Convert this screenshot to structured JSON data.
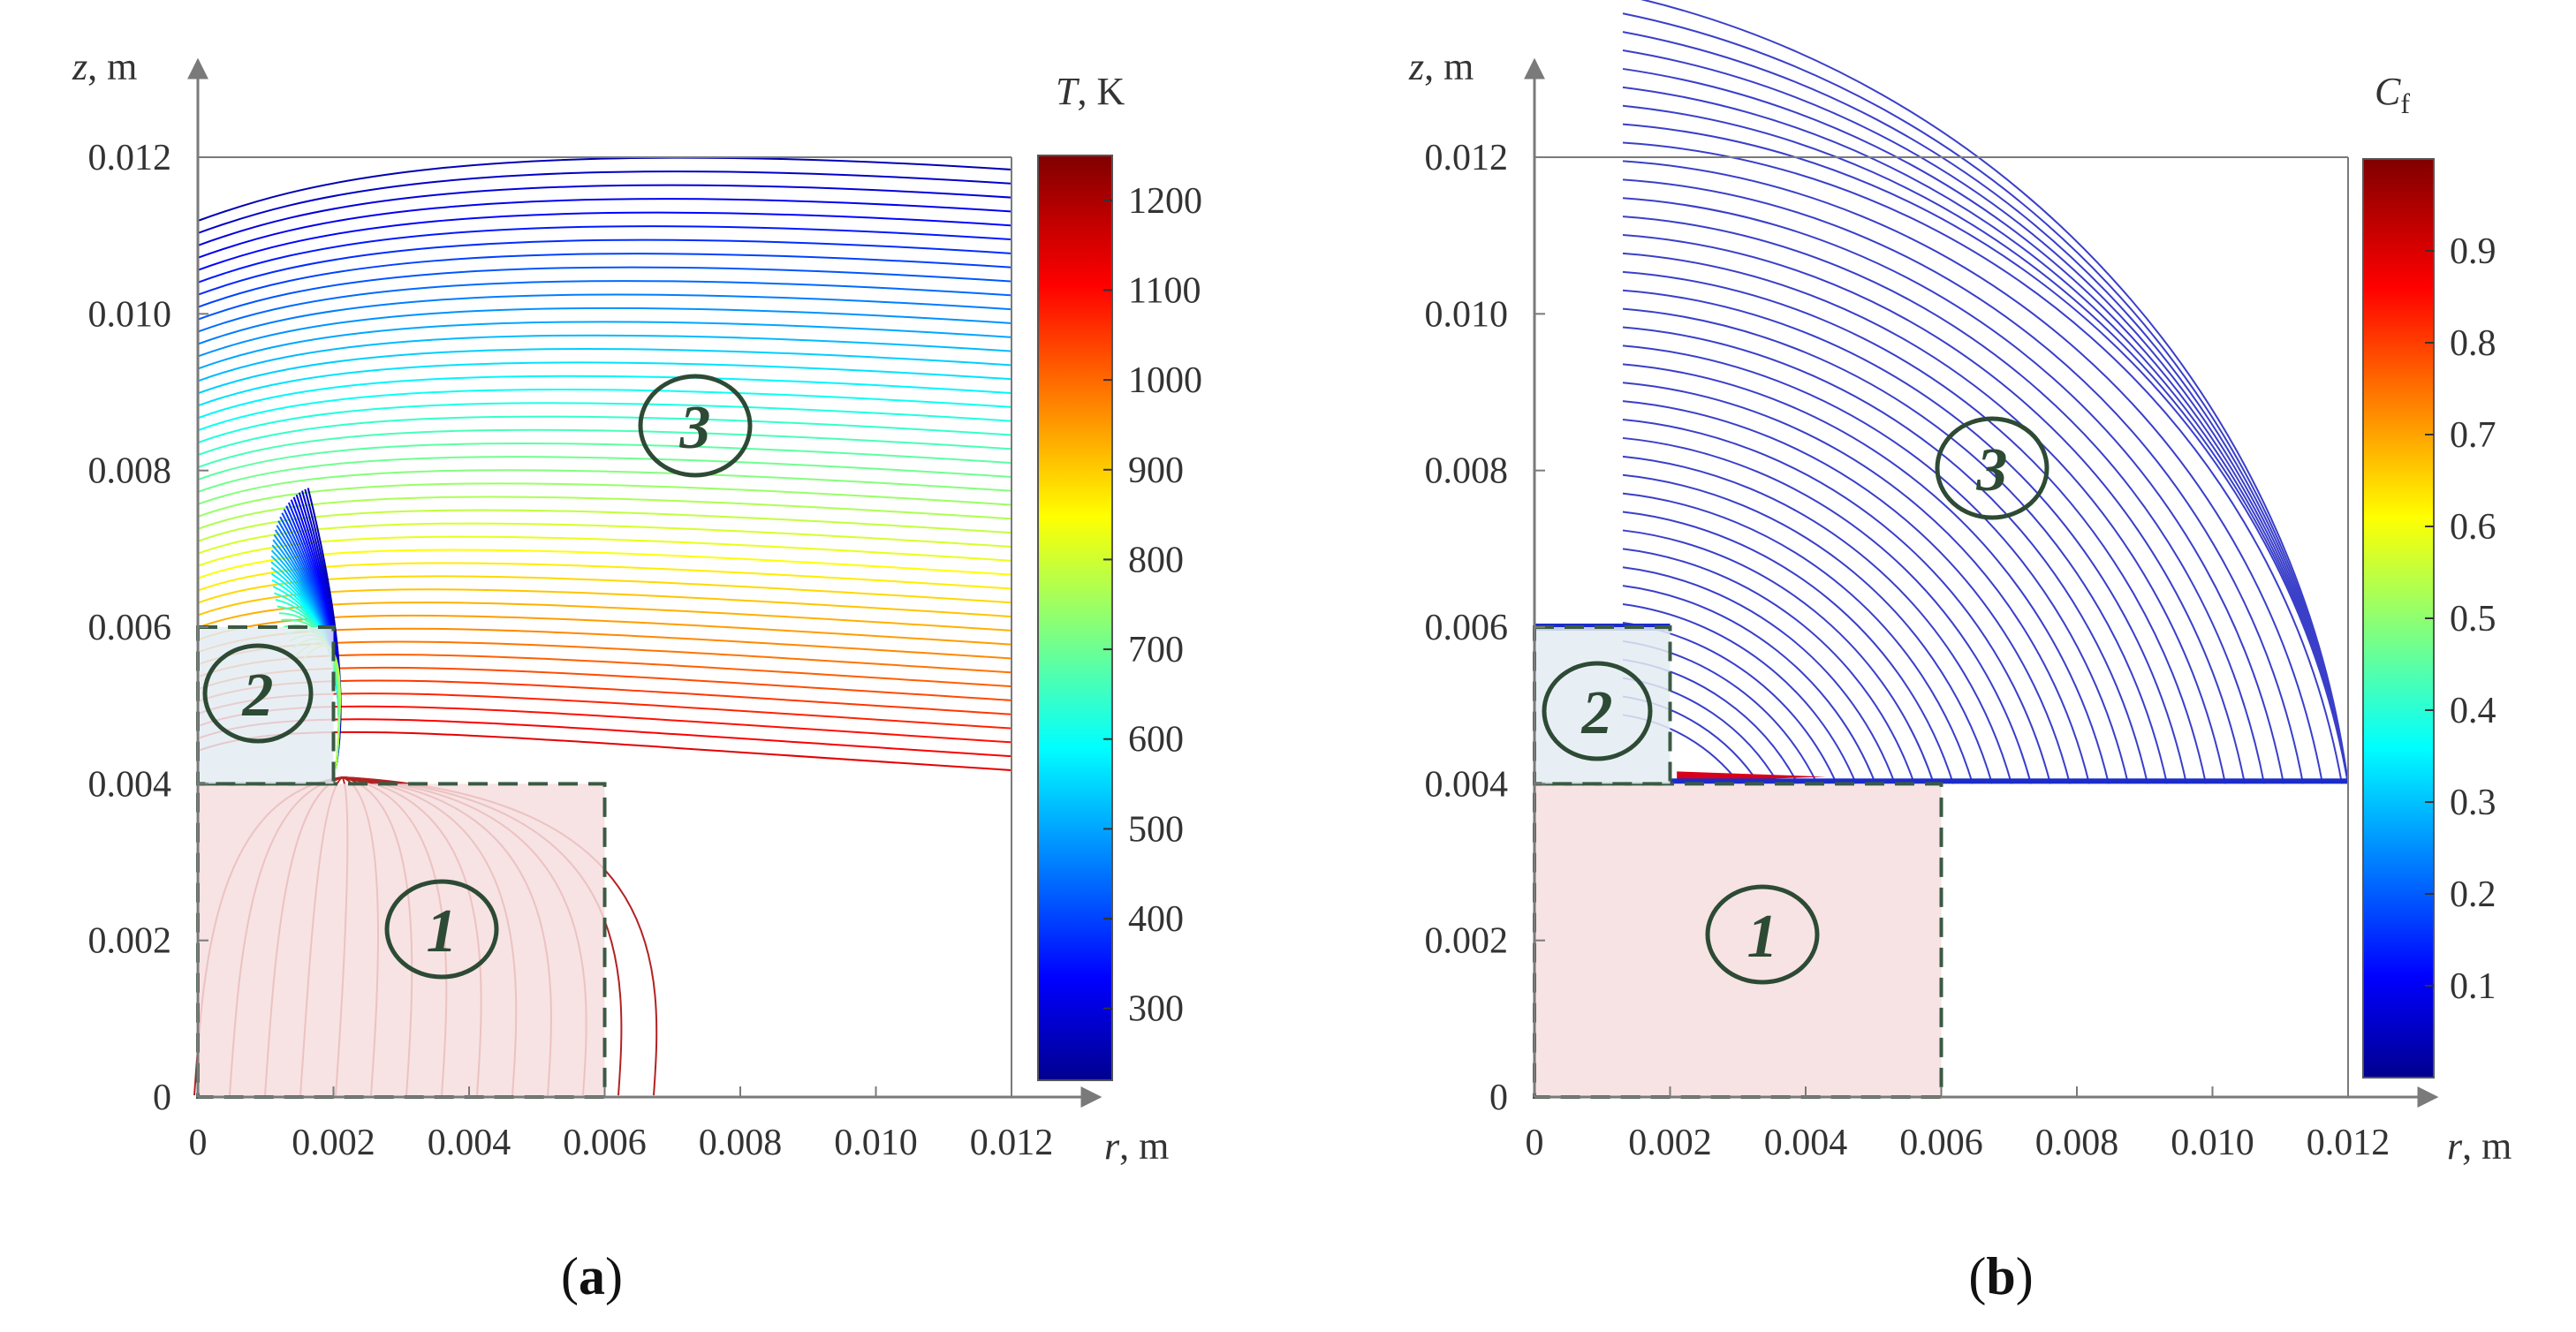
{
  "chart_data": [
    {
      "type": "contour",
      "panel_label": "(a)",
      "panel_letter": "a",
      "xlabel_var": "r",
      "xlabel_unit": ", m",
      "ylabel_var": "z",
      "ylabel_unit": ", m",
      "x_ticks": [
        "0",
        "0.002",
        "0.004",
        "0.006",
        "0.008",
        "0.010",
        "0.012"
      ],
      "y_ticks": [
        "0",
        "0.002",
        "0.004",
        "0.006",
        "0.008",
        "0.010",
        "0.012"
      ],
      "xlim": [
        0,
        0.012
      ],
      "ylim": [
        0,
        0.012
      ],
      "colorbar": {
        "title_var": "T",
        "title_unit": ", K",
        "range": [
          220,
          1250
        ],
        "ticks": [
          "300",
          "400",
          "500",
          "600",
          "700",
          "800",
          "900",
          "1000",
          "1100",
          "1200"
        ]
      },
      "regions": [
        {
          "label": "1",
          "r_range": [
            0,
            0.006
          ],
          "z_range": [
            0,
            0.004
          ],
          "fill": "#f6dede"
        },
        {
          "label": "2",
          "r_range": [
            0,
            0.002
          ],
          "z_range": [
            0.004,
            0.006
          ],
          "fill": "#e4ecf2"
        },
        {
          "label": "3",
          "r_range": [
            0,
            0.012
          ],
          "z_range": [
            0,
            0.012
          ],
          "fill": "none"
        }
      ],
      "annotations": [
        "1",
        "2",
        "3"
      ]
    },
    {
      "type": "contour",
      "panel_label": "(b)",
      "panel_letter": "b",
      "xlabel_var": "r",
      "xlabel_unit": ", m",
      "ylabel_var": "z",
      "ylabel_unit": ", m",
      "x_ticks": [
        "0",
        "0.002",
        "0.004",
        "0.006",
        "0.008",
        "0.010",
        "0.012"
      ],
      "y_ticks": [
        "0",
        "0.002",
        "0.004",
        "0.006",
        "0.008",
        "0.010",
        "0.012"
      ],
      "xlim": [
        0,
        0.012
      ],
      "ylim": [
        0,
        0.012
      ],
      "colorbar": {
        "title_var": "C",
        "title_sub": "f",
        "range": [
          0,
          1
        ],
        "ticks": [
          "0.1",
          "0.2",
          "0.3",
          "0.4",
          "0.5",
          "0.6",
          "0.7",
          "0.8",
          "0.9"
        ]
      },
      "regions": [
        {
          "label": "1",
          "r_range": [
            0,
            0.006
          ],
          "z_range": [
            0,
            0.004
          ],
          "fill": "#f6dede"
        },
        {
          "label": "2",
          "r_range": [
            0,
            0.002
          ],
          "z_range": [
            0.004,
            0.006
          ],
          "fill": "#e4ecf2"
        },
        {
          "label": "3",
          "r_range": [
            0,
            0.012
          ],
          "z_range": [
            0,
            0.012
          ],
          "fill": "none"
        }
      ],
      "annotations": [
        "1",
        "2",
        "3"
      ]
    }
  ],
  "colors": {
    "axis": "#7a7a7a",
    "dashed": "#3b5a44",
    "region_label": "#2d4a35",
    "region1_fill": "#f6dede",
    "region2_fill": "#e4ecf2",
    "contour_b": "#3a3fc8"
  }
}
